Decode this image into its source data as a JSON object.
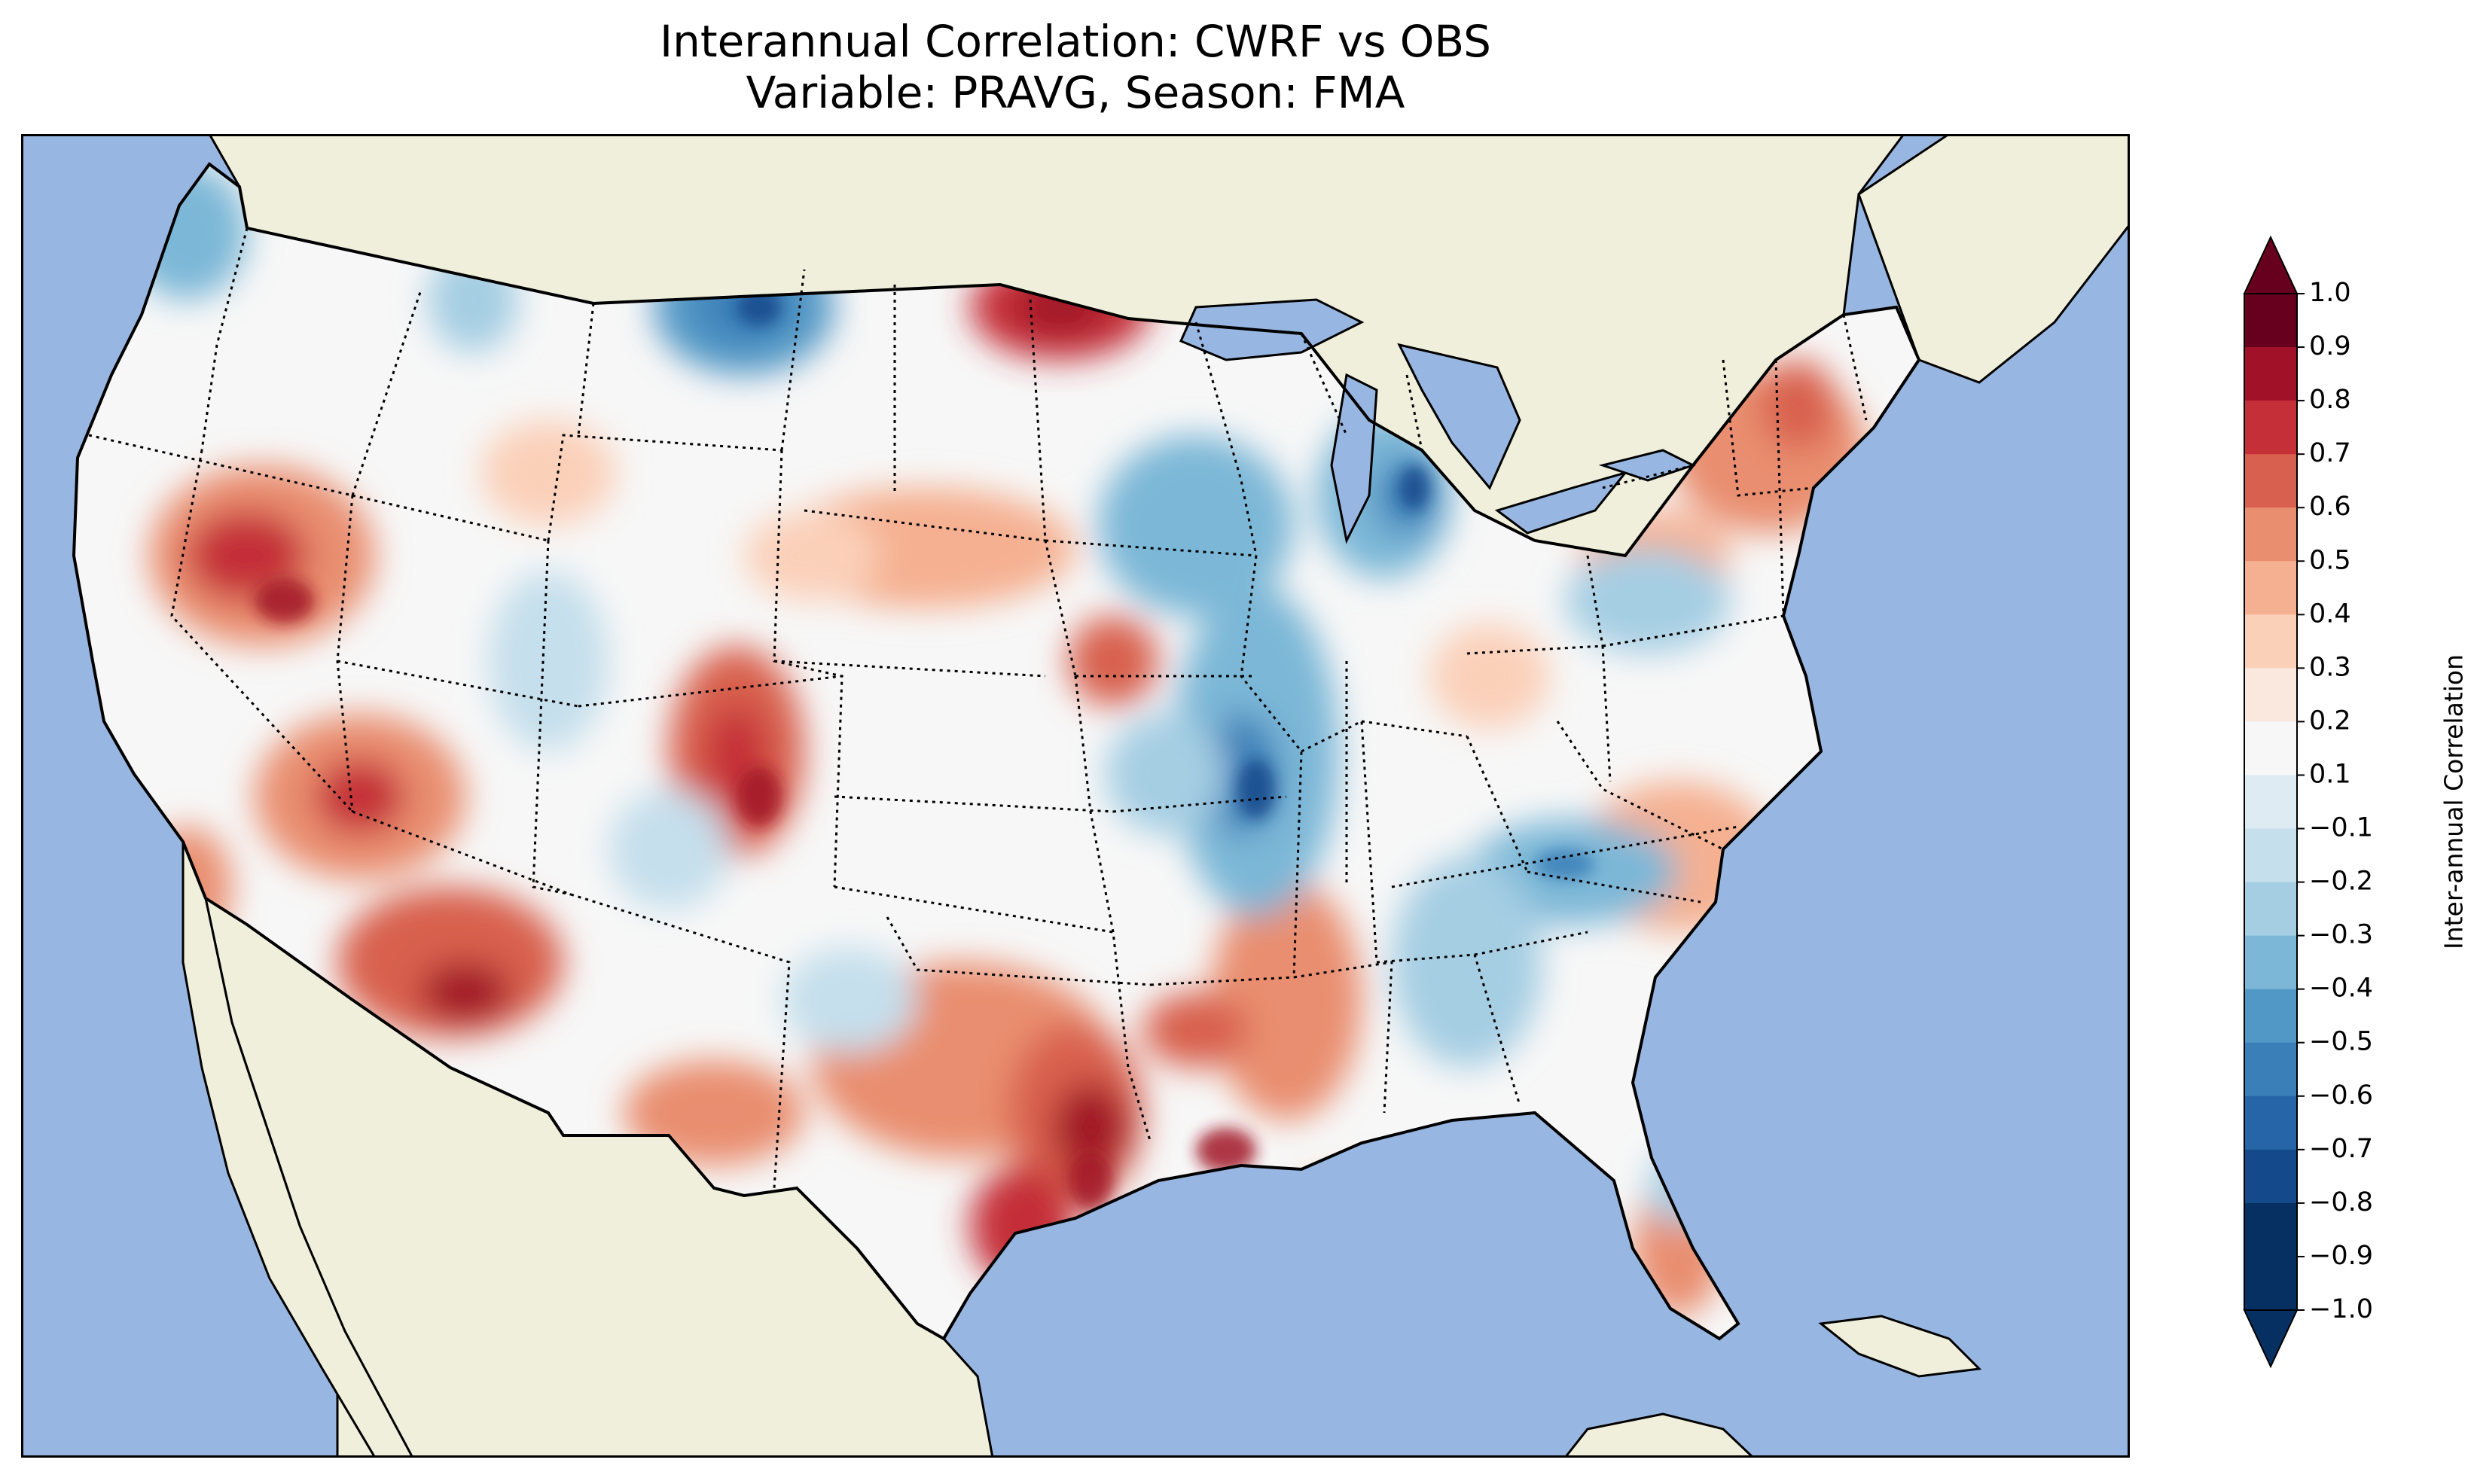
{
  "figure": {
    "title_line_1": "Interannual Correlation: CWRF vs OBS",
    "title_line_2": "Variable: PRAVG, Season: FMA"
  },
  "map": {
    "colors": {
      "ocean": "#97b6e1",
      "land": "#efefdb",
      "coast": "#000000"
    },
    "projection_note": "Lambert conformal, contiguous United States with Canada and Mexico as background land"
  },
  "colorbar": {
    "label": "Inter-annual Correlation",
    "ticks": [
      "1.0",
      "0.9",
      "0.8",
      "0.7",
      "0.6",
      "0.5",
      "0.4",
      "0.3",
      "0.2",
      "0.1",
      "−0.1",
      "−0.2",
      "−0.3",
      "−0.4",
      "−0.5",
      "−0.6",
      "−0.7",
      "−0.8",
      "−0.9",
      "−1.0"
    ],
    "colors": [
      "#67001f",
      "#a11228",
      "#c52f38",
      "#d8604e",
      "#e98e6f",
      "#f5b091",
      "#fbd0b9",
      "#fae8de",
      "#f7f7f7",
      "#dfebf2",
      "#c5dfec",
      "#a5cee3",
      "#7cb7d7",
      "#5298c6",
      "#3a7fb8",
      "#2765a9",
      "#144a8b",
      "#053061"
    ],
    "extend": "both",
    "range": [
      -1.0,
      1.0
    ]
  }
}
